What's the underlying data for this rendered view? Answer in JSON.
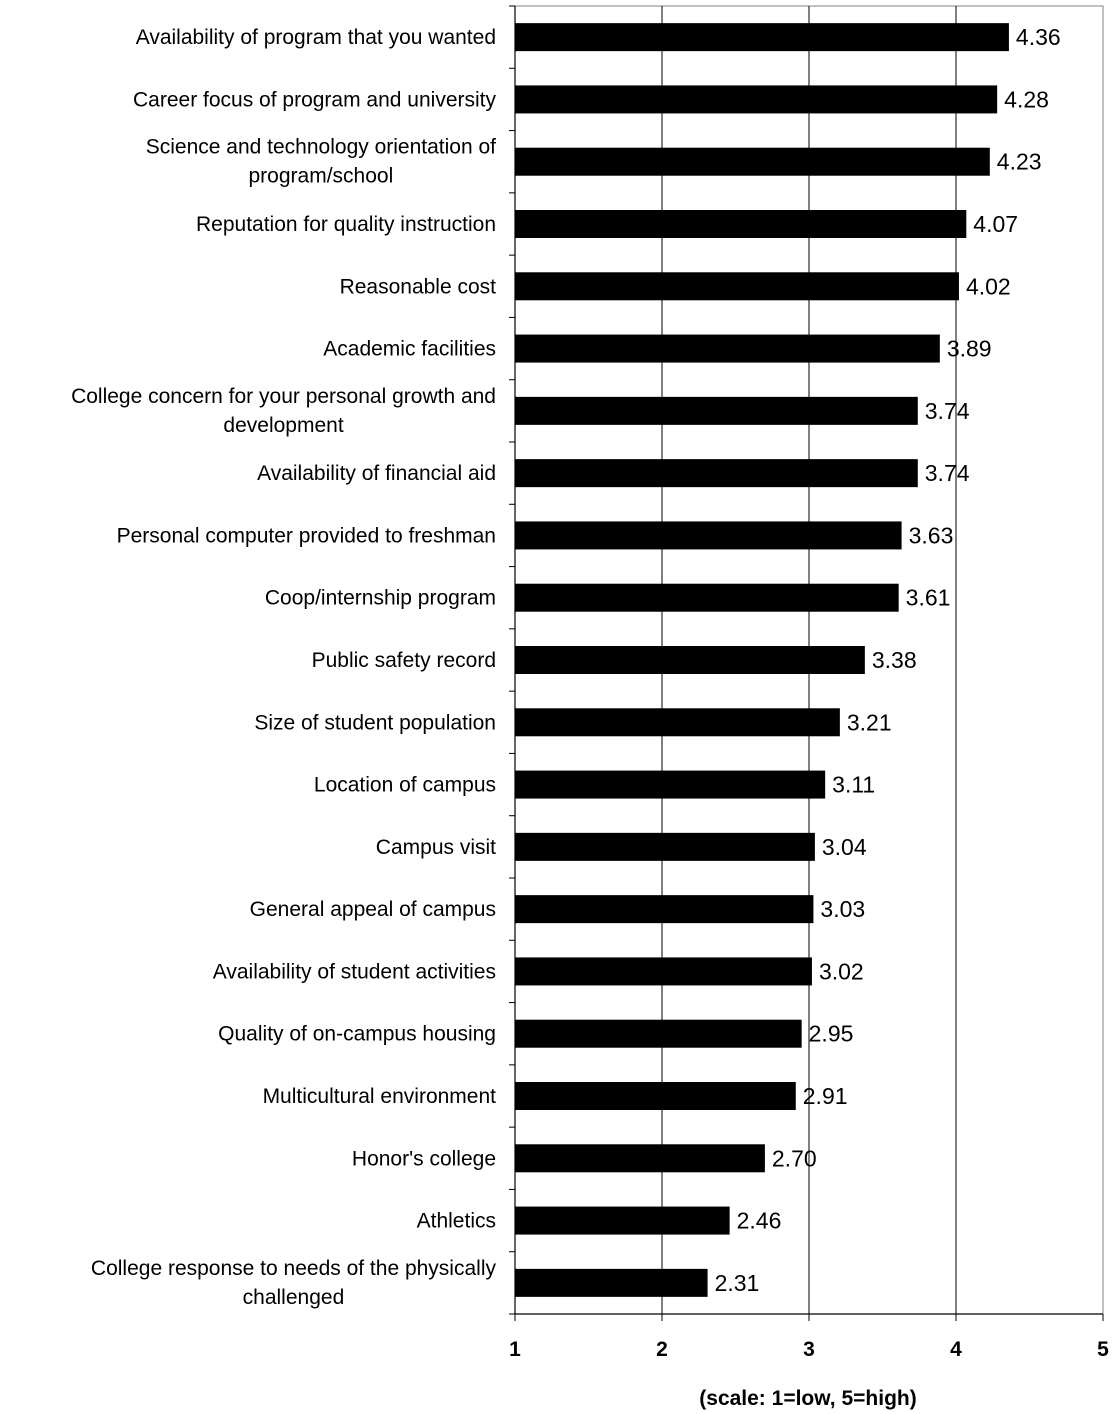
{
  "chart_data": {
    "type": "bar",
    "orientation": "horizontal",
    "title": "",
    "xlabel": "(scale: 1=low, 5=high)",
    "ylabel": "",
    "xlim": [
      1,
      5
    ],
    "x_ticks": [
      "1",
      "2",
      "3",
      "4",
      "5"
    ],
    "grid": "vertical",
    "bar_color": "#000000",
    "categories": [
      "Availability of program that you wanted",
      "Career focus of program and university",
      "Science and technology orientation of program/school",
      "Reputation for quality instruction",
      "Reasonable cost",
      "Academic facilities",
      "College concern for your personal growth and development",
      "Availability of financial aid",
      "Personal computer provided to freshman",
      "Coop/internship program",
      "Public safety record",
      "Size of student population",
      "Location of campus",
      "Campus visit",
      "General appeal of campus",
      "Availability of student activities",
      "Quality of on-campus housing",
      "Multicultural environment",
      "Honor's college",
      "Athletics",
      "College response to needs of the physically challenged"
    ],
    "category_lines": [
      [
        "Availability of program that you wanted"
      ],
      [
        "Career focus of program and university"
      ],
      [
        "Science and technology orientation of",
        "program/school"
      ],
      [
        "Reputation for quality instruction"
      ],
      [
        "Reasonable cost"
      ],
      [
        "Academic facilities"
      ],
      [
        "College concern for your personal growth and",
        "development"
      ],
      [
        "Availability of financial aid"
      ],
      [
        "Personal computer provided to freshman"
      ],
      [
        "Coop/internship program"
      ],
      [
        "Public safety record"
      ],
      [
        "Size of student population"
      ],
      [
        "Location of campus"
      ],
      [
        "Campus visit"
      ],
      [
        "General appeal of campus"
      ],
      [
        "Availability of student activities"
      ],
      [
        "Quality of on-campus housing"
      ],
      [
        "Multicultural environment"
      ],
      [
        "Honor's college"
      ],
      [
        "Athletics"
      ],
      [
        "College response to needs of the physically",
        "challenged"
      ]
    ],
    "values": [
      4.36,
      4.28,
      4.23,
      4.07,
      4.02,
      3.89,
      3.74,
      3.74,
      3.63,
      3.61,
      3.38,
      3.21,
      3.11,
      3.04,
      3.03,
      3.02,
      2.95,
      2.91,
      2.7,
      2.46,
      2.31
    ],
    "value_labels": [
      "4.36",
      "4.28",
      "4.23",
      "4.07",
      "4.02",
      "3.89",
      "3.74",
      "3.74",
      "3.63",
      "3.61",
      "3.38",
      "3.21",
      "3.11",
      "3.04",
      "3.03",
      "3.02",
      "2.95",
      "2.91",
      "2.70",
      "2.46",
      "2.31"
    ]
  }
}
